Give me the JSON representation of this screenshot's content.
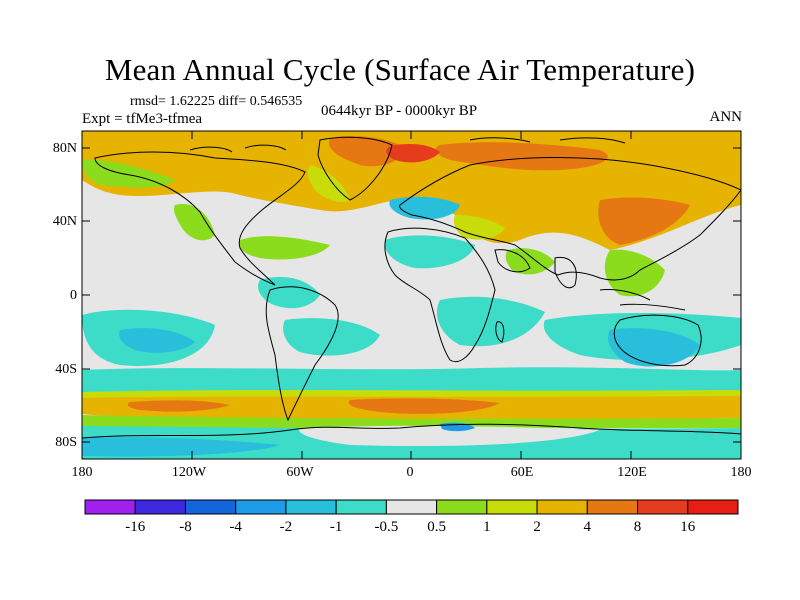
{
  "title": "Mean Annual Cycle (Surface Air Temperature)",
  "stats": "rmsd= 1.62225 diff= 0.546535",
  "experiment": "Expt = tfMe3-tfmea",
  "period": "0644kyr BP - 0000kyr BP",
  "season": "ANN",
  "lat_labels": [
    "80N",
    "40N",
    "0",
    "40S",
    "80S"
  ],
  "lon_labels": [
    "180",
    "120W",
    "60W",
    "0",
    "60E",
    "120E",
    "180"
  ],
  "colorbar": {
    "labels": [
      "-16",
      "-8",
      "-4",
      "-2",
      "-1",
      "-0.5",
      "0.5",
      "1",
      "2",
      "4",
      "8",
      "16"
    ],
    "colors": [
      "#a020f0",
      "#3c28e0",
      "#1464dc",
      "#1e9be6",
      "#28bedc",
      "#3cdcc8",
      "#e6e6e6",
      "#8cdc1e",
      "#c8dc0a",
      "#e6b400",
      "#e67814",
      "#e63c1e",
      "#e61e14"
    ]
  }
}
